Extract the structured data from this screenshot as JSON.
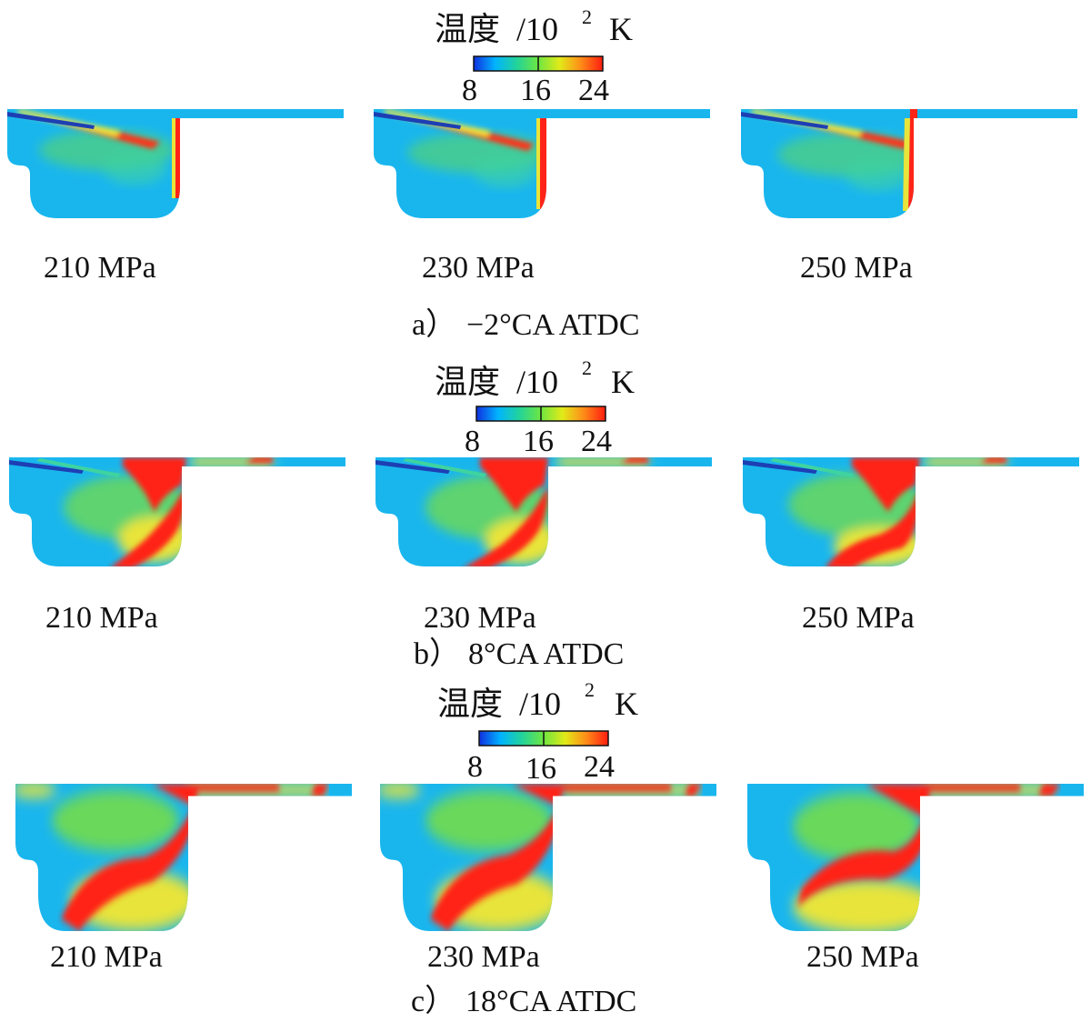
{
  "legend": {
    "title_prefix": "温度",
    "title_mid": "/10",
    "title_exp": "2",
    "title_unit": "K",
    "ticks": [
      "8",
      "16",
      "24"
    ],
    "colors": [
      "#1030e0",
      "#00b4ff",
      "#22d39a",
      "#6ee641",
      "#e2ea18",
      "#ff8a18",
      "#ff1c10"
    ]
  },
  "colors": {
    "cold": "#19b6ee",
    "mid": "#5fd36a",
    "yellow": "#e8e43a",
    "hot": "#ff2417",
    "jet": "#1d3fb4"
  },
  "rows": [
    {
      "caption_letter": "a）",
      "caption_angle": "−2°CA ATDC",
      "panels": [
        {
          "pressure": "210 MPa"
        },
        {
          "pressure": "230 MPa"
        },
        {
          "pressure": "250 MPa"
        }
      ]
    },
    {
      "caption_letter": "b）",
      "caption_angle": "8°CA ATDC",
      "panels": [
        {
          "pressure": "210 MPa"
        },
        {
          "pressure": "230 MPa"
        },
        {
          "pressure": "250 MPa"
        }
      ]
    },
    {
      "caption_letter": "c）",
      "caption_angle": "18°CA ATDC",
      "panels": [
        {
          "pressure": "210 MPa"
        },
        {
          "pressure": "230 MPa"
        },
        {
          "pressure": "250 MPa"
        }
      ]
    }
  ]
}
